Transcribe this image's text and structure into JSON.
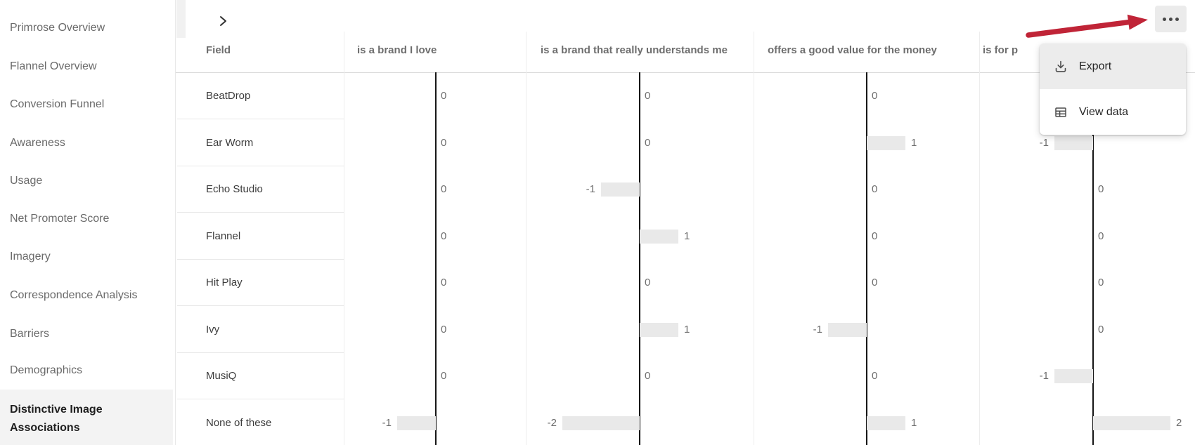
{
  "sidebar": {
    "items": [
      {
        "label": "Primrose Overview",
        "selected": false
      },
      {
        "label": "Flannel Overview",
        "selected": false
      },
      {
        "label": "Conversion Funnel",
        "selected": false
      },
      {
        "label": "Awareness",
        "selected": false
      },
      {
        "label": "Usage",
        "selected": false
      },
      {
        "label": "Net Promoter Score",
        "selected": false
      },
      {
        "label": "Imagery",
        "selected": false
      },
      {
        "label": "Correspondence Analysis",
        "selected": false
      },
      {
        "label": "Barriers",
        "selected": false
      },
      {
        "label": "Demographics",
        "selected": false
      },
      {
        "label": "Distinctive Image Associations",
        "selected": true
      }
    ]
  },
  "toolbar": {
    "collapse_chevron_icon": "chevron-right",
    "more_button_icon": "ellipsis"
  },
  "more_menu": {
    "items": [
      {
        "icon": "download-icon",
        "label": "Export",
        "highlighted": true
      },
      {
        "icon": "table-icon",
        "label": "View data",
        "highlighted": false
      }
    ]
  },
  "annotation_arrow": {
    "color": "#c02437",
    "points_to": "more-button"
  },
  "chart_data": {
    "type": "bar",
    "orientation": "horizontal",
    "title": "",
    "field_column_header": "Field",
    "categories": [
      "BeatDrop",
      "Ear Worm",
      "Echo Studio",
      "Flannel",
      "Hit Play",
      "Ivy",
      "MusiQ",
      "None of these"
    ],
    "series": [
      {
        "name": "is a brand I love",
        "values": [
          0,
          0,
          0,
          0,
          0,
          0,
          0,
          -1
        ]
      },
      {
        "name": "is a brand that really understands me",
        "values": [
          0,
          0,
          -1,
          1,
          0,
          1,
          0,
          -2
        ]
      },
      {
        "name": "offers a good value for the money",
        "values": [
          0,
          1,
          0,
          0,
          0,
          -1,
          0,
          1
        ]
      },
      {
        "name": "is for p",
        "name_truncated_by_menu": true,
        "values": [
          null,
          -1,
          0,
          0,
          0,
          0,
          -1,
          2
        ]
      }
    ],
    "value_note": "null = cell hidden behind the open menu overlay",
    "xlim": [
      -2.6,
      2.6
    ],
    "grid": false,
    "legend": "none",
    "bar_color": "#e9e9e9",
    "axis_color": "#161616",
    "value_label_color": "#6e6e6e"
  }
}
